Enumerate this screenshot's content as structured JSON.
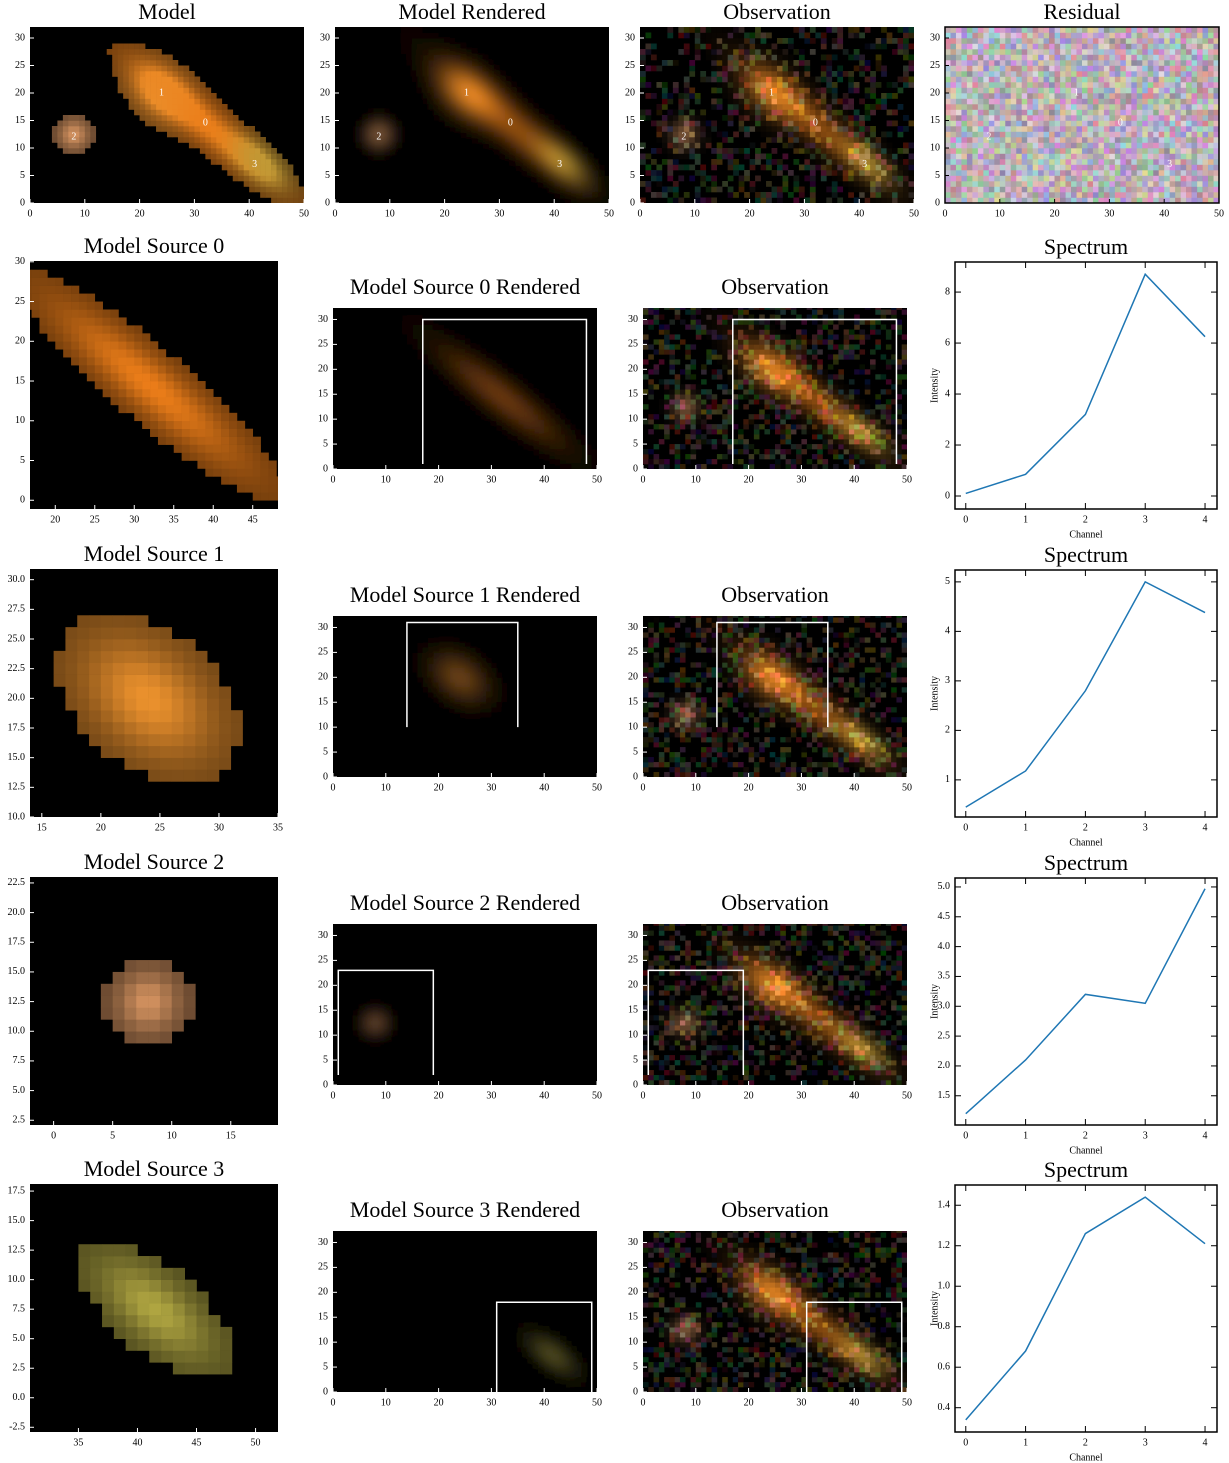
{
  "chart_data": [
    {
      "type": "image",
      "title": "Model",
      "xlim": [
        0,
        50
      ],
      "ylim": [
        0,
        32
      ],
      "xticks": [
        0,
        10,
        20,
        30,
        40,
        50
      ],
      "yticks": [
        0,
        5,
        10,
        15,
        20,
        25,
        30
      ],
      "sources": [
        {
          "label": "0",
          "x": 32,
          "y": 14.5
        },
        {
          "label": "1",
          "x": 24,
          "y": 20
        },
        {
          "label": "2",
          "x": 8,
          "y": 12
        },
        {
          "label": "3",
          "x": 41,
          "y": 7
        }
      ]
    },
    {
      "type": "image",
      "title": "Model Rendered",
      "xlim": [
        0,
        50
      ],
      "ylim": [
        0,
        32
      ],
      "xticks": [
        0,
        10,
        20,
        30,
        40,
        50
      ],
      "yticks": [
        0,
        5,
        10,
        15,
        20,
        25,
        30
      ],
      "sources": [
        {
          "label": "0",
          "x": 32,
          "y": 14.5
        },
        {
          "label": "1",
          "x": 24,
          "y": 20
        },
        {
          "label": "2",
          "x": 8,
          "y": 12
        },
        {
          "label": "3",
          "x": 41,
          "y": 7
        }
      ]
    },
    {
      "type": "image",
      "title": "Observation",
      "xlim": [
        0,
        50
      ],
      "ylim": [
        0,
        32
      ],
      "xticks": [
        0,
        10,
        20,
        30,
        40,
        50
      ],
      "yticks": [
        0,
        5,
        10,
        15,
        20,
        25,
        30
      ],
      "sources": [
        {
          "label": "0",
          "x": 32,
          "y": 14.5
        },
        {
          "label": "1",
          "x": 24,
          "y": 20
        },
        {
          "label": "2",
          "x": 8,
          "y": 12
        },
        {
          "label": "3",
          "x": 41,
          "y": 7
        }
      ]
    },
    {
      "type": "image",
      "title": "Residual",
      "xlim": [
        0,
        50
      ],
      "ylim": [
        0,
        32
      ],
      "xticks": [
        0,
        10,
        20,
        30,
        40,
        50
      ],
      "yticks": [
        0,
        5,
        10,
        15,
        20,
        25,
        30
      ],
      "sources": [
        {
          "label": "0",
          "x": 32,
          "y": 14.5
        },
        {
          "label": "1",
          "x": 24,
          "y": 20
        },
        {
          "label": "2",
          "x": 8,
          "y": 12
        },
        {
          "label": "3",
          "x": 41,
          "y": 7
        }
      ]
    },
    {
      "type": "image",
      "title": "Model Source 0",
      "xlim": [
        16.8,
        48.2
      ],
      "ylim": [
        -1.1,
        30.1
      ],
      "xticks": [
        20,
        25,
        30,
        35,
        40,
        45
      ],
      "yticks": [
        0,
        5,
        10,
        15,
        20,
        25,
        30
      ]
    },
    {
      "type": "image",
      "title": "Model Source 0 Rendered",
      "xlim": [
        0,
        50
      ],
      "ylim": [
        0,
        32.3
      ],
      "xticks": [
        0,
        10,
        20,
        30,
        40,
        50
      ],
      "yticks": [
        0,
        5,
        10,
        15,
        20,
        25,
        30
      ],
      "box": {
        "x": [
          17,
          48
        ],
        "y": [
          1,
          30
        ]
      }
    },
    {
      "type": "image",
      "title": "Observation",
      "xlim": [
        0,
        50
      ],
      "ylim": [
        0,
        32.3
      ],
      "xticks": [
        0,
        10,
        20,
        30,
        40,
        50
      ],
      "yticks": [
        0,
        5,
        10,
        15,
        20,
        25,
        30
      ],
      "box": {
        "x": [
          17,
          48
        ],
        "y": [
          1,
          30
        ]
      }
    },
    {
      "type": "line",
      "title": "Spectrum",
      "xlabel": "Channel",
      "ylabel": "Intensity",
      "color": "#1f77b4",
      "x": [
        0,
        1,
        2,
        3,
        4
      ],
      "values": [
        0.1,
        0.85,
        3.2,
        8.7,
        6.25
      ],
      "xlim": [
        -0.18,
        4.2
      ],
      "ylim": [
        -0.51,
        9.18
      ],
      "xticks": [
        0,
        1,
        2,
        3,
        4
      ],
      "yticks": [
        0,
        2,
        4,
        6,
        8
      ]
    },
    {
      "type": "image",
      "title": "Model Source 1",
      "xlim": [
        14,
        35
      ],
      "ylim": [
        10,
        30.9
      ],
      "xticks": [
        15,
        20,
        25,
        30,
        35
      ],
      "yticks": [
        {
          "value": 10,
          "label": "10.0"
        },
        12.5,
        {
          "value": 15,
          "label": "15.0"
        },
        17.5,
        {
          "value": 20,
          "label": "20.0"
        },
        22.5,
        {
          "value": 25,
          "label": "25.0"
        },
        27.5,
        {
          "value": 30,
          "label": "30.0"
        }
      ]
    },
    {
      "type": "image",
      "title": "Model Source 1 Rendered",
      "xlim": [
        0,
        50
      ],
      "ylim": [
        0,
        32.3
      ],
      "xticks": [
        0,
        10,
        20,
        30,
        40,
        50
      ],
      "yticks": [
        0,
        5,
        10,
        15,
        20,
        25,
        30
      ],
      "box": {
        "x": [
          14,
          35
        ],
        "y": [
          10,
          31
        ]
      }
    },
    {
      "type": "image",
      "title": "Observation",
      "xlim": [
        0,
        50
      ],
      "ylim": [
        0,
        32.3
      ],
      "xticks": [
        0,
        10,
        20,
        30,
        40,
        50
      ],
      "yticks": [
        0,
        5,
        10,
        15,
        20,
        25,
        30
      ],
      "box": {
        "x": [
          14,
          35
        ],
        "y": [
          10,
          31
        ]
      }
    },
    {
      "type": "line",
      "title": "Spectrum",
      "xlabel": "Channel",
      "ylabel": "Intensity",
      "color": "#1f77b4",
      "x": [
        0,
        1,
        2,
        3,
        4
      ],
      "values": [
        0.45,
        1.18,
        2.8,
        5.0,
        4.38
      ],
      "xlim": [
        -0.18,
        4.2
      ],
      "ylim": [
        0.25,
        5.24
      ],
      "xticks": [
        0,
        1,
        2,
        3,
        4
      ],
      "yticks": [
        1,
        2,
        3,
        4,
        5
      ]
    },
    {
      "type": "image",
      "title": "Model Source 2",
      "xlim": [
        -2,
        19
      ],
      "ylim": [
        2.1,
        23
      ],
      "xticks": [
        0,
        5,
        10,
        15
      ],
      "yticks": [
        2.5,
        {
          "value": 5,
          "label": "5.0"
        },
        7.5,
        {
          "value": 10,
          "label": "10.0"
        },
        12.5,
        {
          "value": 15,
          "label": "15.0"
        },
        17.5,
        {
          "value": 20,
          "label": "20.0"
        },
        22.5
      ]
    },
    {
      "type": "image",
      "title": "Model Source 2 Rendered",
      "xlim": [
        0,
        50
      ],
      "ylim": [
        0,
        32.3
      ],
      "xticks": [
        0,
        10,
        20,
        30,
        40,
        50
      ],
      "yticks": [
        0,
        5,
        10,
        15,
        20,
        25,
        30
      ],
      "box": {
        "x": [
          1,
          19
        ],
        "y": [
          2,
          23
        ]
      }
    },
    {
      "type": "image",
      "title": "Observation",
      "xlim": [
        0,
        50
      ],
      "ylim": [
        0,
        32.3
      ],
      "xticks": [
        0,
        10,
        20,
        30,
        40,
        50
      ],
      "yticks": [
        0,
        5,
        10,
        15,
        20,
        25,
        30
      ],
      "box": {
        "x": [
          1,
          19
        ],
        "y": [
          2,
          23
        ]
      }
    },
    {
      "type": "line",
      "title": "Spectrum",
      "xlabel": "Channel",
      "ylabel": "Intensity",
      "color": "#1f77b4",
      "x": [
        0,
        1,
        2,
        3,
        4
      ],
      "values": [
        1.2,
        2.1,
        3.2,
        3.05,
        4.97
      ],
      "xlim": [
        -0.18,
        4.2
      ],
      "ylim": [
        1.01,
        5.15
      ],
      "xticks": [
        0,
        1,
        2,
        3,
        4
      ],
      "yticks": [
        1.5,
        {
          "value": 2,
          "label": "2.0"
        },
        2.5,
        {
          "value": 3,
          "label": "3.0"
        },
        3.5,
        {
          "value": 4,
          "label": "4.0"
        },
        4.5,
        {
          "value": 5,
          "label": "5.0"
        }
      ]
    },
    {
      "type": "image",
      "title": "Model Source 3",
      "xlim": [
        30.9,
        51.9
      ],
      "ylim": [
        -2.9,
        18.1
      ],
      "xticks": [
        35,
        40,
        45,
        50
      ],
      "yticks": [
        -2.5,
        {
          "value": 0,
          "label": "0.0"
        },
        2.5,
        {
          "value": 5,
          "label": "5.0"
        },
        7.5,
        {
          "value": 10,
          "label": "10.0"
        },
        12.5,
        {
          "value": 15,
          "label": "15.0"
        },
        17.5
      ]
    },
    {
      "type": "image",
      "title": "Model Source 3 Rendered",
      "xlim": [
        0,
        50
      ],
      "ylim": [
        0,
        32.3
      ],
      "xticks": [
        0,
        10,
        20,
        30,
        40,
        50
      ],
      "yticks": [
        0,
        5,
        10,
        15,
        20,
        25,
        30
      ],
      "box": {
        "x": [
          31,
          49
        ],
        "y": [
          0,
          18
        ]
      }
    },
    {
      "type": "image",
      "title": "Observation",
      "xlim": [
        0,
        50
      ],
      "ylim": [
        0,
        32.3
      ],
      "xticks": [
        0,
        10,
        20,
        30,
        40,
        50
      ],
      "yticks": [
        0,
        5,
        10,
        15,
        20,
        25,
        30
      ],
      "box": {
        "x": [
          31,
          49
        ],
        "y": [
          0,
          18
        ]
      }
    },
    {
      "type": "line",
      "title": "Spectrum",
      "xlabel": "Channel",
      "ylabel": "Intensity",
      "color": "#1f77b4",
      "x": [
        0,
        1,
        2,
        3,
        4
      ],
      "values": [
        0.34,
        0.68,
        1.26,
        1.44,
        1.21
      ],
      "xlim": [
        -0.18,
        4.2
      ],
      "ylim": [
        0.28,
        1.5
      ],
      "xticks": [
        0,
        1,
        2,
        3,
        4
      ],
      "yticks": [
        0.4,
        0.6,
        0.8,
        {
          "value": 1,
          "label": "1.0"
        },
        1.2,
        1.4
      ]
    }
  ]
}
